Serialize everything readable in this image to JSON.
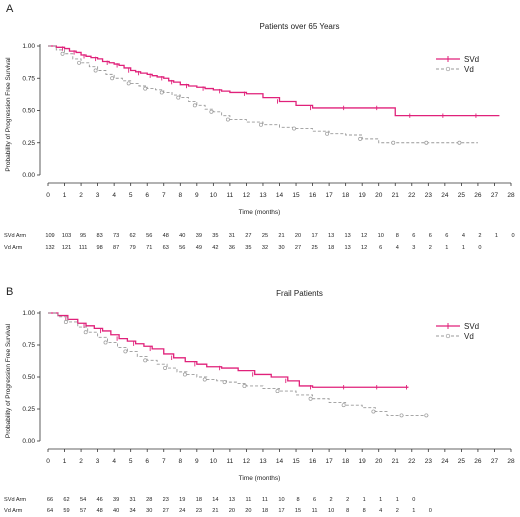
{
  "chart_data": [
    {
      "type": "line",
      "panel_label": "A",
      "title": "Patients over 65 Years",
      "xlabel": "Time (months)",
      "ylabel": "Probability of Progression Free Survival",
      "xlim": [
        0,
        28
      ],
      "ylim": [
        0,
        1.0
      ],
      "xticks": [
        0,
        1,
        2,
        3,
        4,
        5,
        6,
        7,
        8,
        9,
        10,
        11,
        12,
        13,
        14,
        15,
        16,
        17,
        18,
        19,
        20,
        21,
        22,
        23,
        24,
        25,
        26,
        27,
        28
      ],
      "yticks": [
        "0.00",
        "0.25",
        "0.50",
        "0.75",
        "1.00"
      ],
      "legend_position": "top-right",
      "grid": false,
      "series": [
        {
          "name": "SVd",
          "color": "#e0217a",
          "style": "solid",
          "x": [
            0,
            0.5,
            1,
            1.3,
            1.7,
            2,
            2.3,
            2.6,
            3,
            3.3,
            3.7,
            4,
            4.3,
            4.6,
            5,
            5.3,
            5.6,
            6,
            6.3,
            6.6,
            7,
            7.3,
            7.6,
            8,
            8.5,
            9,
            9.5,
            10,
            10.5,
            11,
            12,
            13,
            14,
            15,
            16,
            17,
            18,
            19,
            20,
            21,
            22,
            23,
            24,
            25,
            26,
            27.3
          ],
          "y": [
            1.0,
            0.99,
            0.98,
            0.96,
            0.95,
            0.93,
            0.92,
            0.91,
            0.9,
            0.88,
            0.87,
            0.86,
            0.85,
            0.83,
            0.81,
            0.8,
            0.79,
            0.78,
            0.77,
            0.76,
            0.75,
            0.73,
            0.72,
            0.7,
            0.69,
            0.68,
            0.67,
            0.66,
            0.65,
            0.64,
            0.63,
            0.6,
            0.57,
            0.54,
            0.52,
            0.52,
            0.52,
            0.52,
            0.52,
            0.46,
            0.46,
            0.46,
            0.46,
            0.46,
            0.46,
            0.46
          ]
        },
        {
          "name": "Vd",
          "color": "#999999",
          "style": "dashed",
          "x": [
            0,
            0.5,
            1,
            1.5,
            2,
            2.5,
            3,
            3.5,
            4,
            4.5,
            5,
            5.5,
            6,
            6.5,
            7,
            7.5,
            8,
            8.5,
            9,
            9.5,
            10,
            10.5,
            11,
            12,
            13,
            14,
            15,
            16,
            17,
            18,
            19,
            20,
            21,
            22,
            23,
            24,
            25,
            26
          ],
          "y": [
            1.0,
            0.97,
            0.94,
            0.9,
            0.87,
            0.84,
            0.81,
            0.78,
            0.75,
            0.73,
            0.71,
            0.69,
            0.67,
            0.66,
            0.64,
            0.62,
            0.6,
            0.57,
            0.54,
            0.51,
            0.49,
            0.46,
            0.43,
            0.41,
            0.39,
            0.37,
            0.36,
            0.34,
            0.32,
            0.31,
            0.28,
            0.25,
            0.25,
            0.25,
            0.25,
            0.25,
            0.25,
            0.25
          ]
        }
      ],
      "risk_table": {
        "xlabel": "Time (months)",
        "rows": [
          {
            "label": "SVd Arm",
            "values": [
              "109",
              "103",
              "95",
              "83",
              "73",
              "62",
              "56",
              "48",
              "40",
              "39",
              "35",
              "31",
              "27",
              "25",
              "21",
              "20",
              "17",
              "13",
              "13",
              "12",
              "10",
              "8",
              "6",
              "6",
              "6",
              "4",
              "2",
              "1",
              "0"
            ]
          },
          {
            "label": "Vd Arm",
            "values": [
              "132",
              "121",
              "111",
              "98",
              "87",
              "79",
              "71",
              "63",
              "56",
              "49",
              "42",
              "36",
              "35",
              "32",
              "30",
              "27",
              "25",
              "18",
              "13",
              "12",
              "6",
              "4",
              "3",
              "2",
              "1",
              "1",
              "0",
              "",
              ""
            ]
          }
        ]
      }
    },
    {
      "type": "line",
      "panel_label": "B",
      "title": "Frail Patients",
      "xlabel": "Time (months)",
      "ylabel": "Probability of Progression Free Survival",
      "xlim": [
        0,
        28
      ],
      "ylim": [
        0,
        1.0
      ],
      "xticks": [
        0,
        1,
        2,
        3,
        4,
        5,
        6,
        7,
        8,
        9,
        10,
        11,
        12,
        13,
        14,
        15,
        16,
        17,
        18,
        19,
        20,
        21,
        22,
        23,
        24,
        25,
        26,
        27,
        28
      ],
      "yticks": [
        "0.00",
        "0.25",
        "0.50",
        "0.75",
        "1.00"
      ],
      "legend_position": "top-right",
      "grid": false,
      "series": [
        {
          "name": "SVd",
          "color": "#e0217a",
          "style": "solid",
          "x": [
            0,
            0.6,
            1.2,
            1.8,
            2.3,
            2.8,
            3.3,
            3.8,
            4.3,
            4.8,
            5.3,
            5.8,
            6.3,
            7,
            7.6,
            8.3,
            9,
            9.6,
            10.5,
            11.5,
            12.5,
            13.5,
            14.5,
            15.2,
            16,
            17,
            18,
            19,
            20,
            21,
            21.8
          ],
          "y": [
            1.0,
            0.98,
            0.95,
            0.92,
            0.9,
            0.88,
            0.86,
            0.83,
            0.8,
            0.78,
            0.76,
            0.74,
            0.72,
            0.68,
            0.65,
            0.62,
            0.6,
            0.58,
            0.57,
            0.55,
            0.52,
            0.5,
            0.47,
            0.43,
            0.42,
            0.42,
            0.42,
            0.42,
            0.42,
            0.42,
            0.42
          ]
        },
        {
          "name": "Vd",
          "color": "#999999",
          "style": "dashed",
          "x": [
            0,
            0.6,
            1.2,
            1.8,
            2.4,
            3,
            3.6,
            4.2,
            4.8,
            5.4,
            6,
            6.6,
            7.2,
            7.8,
            8.4,
            9,
            9.6,
            10.2,
            10.8,
            11.4,
            12,
            13,
            14,
            15,
            16,
            17,
            18,
            19,
            19.8,
            20.5,
            21.5,
            22.5,
            23
          ],
          "y": [
            1.0,
            0.97,
            0.93,
            0.89,
            0.85,
            0.81,
            0.77,
            0.73,
            0.7,
            0.66,
            0.63,
            0.6,
            0.57,
            0.54,
            0.52,
            0.5,
            0.48,
            0.47,
            0.46,
            0.45,
            0.43,
            0.41,
            0.39,
            0.36,
            0.33,
            0.3,
            0.28,
            0.26,
            0.23,
            0.2,
            0.2,
            0.2,
            0.2
          ]
        }
      ],
      "risk_table": {
        "xlabel": "Time (months)",
        "rows": [
          {
            "label": "SVd Arm",
            "values": [
              "66",
              "62",
              "54",
              "46",
              "39",
              "31",
              "28",
              "23",
              "19",
              "18",
              "14",
              "13",
              "11",
              "11",
              "10",
              "8",
              "6",
              "2",
              "2",
              "1",
              "1",
              "1",
              "0",
              "",
              "",
              "",
              "",
              "",
              ""
            ]
          },
          {
            "label": "Vd Arm",
            "values": [
              "64",
              "59",
              "57",
              "48",
              "40",
              "34",
              "30",
              "27",
              "24",
              "23",
              "21",
              "20",
              "20",
              "18",
              "17",
              "15",
              "11",
              "10",
              "8",
              "8",
              "4",
              "2",
              "1",
              "0",
              "",
              "",
              "",
              "",
              ""
            ]
          }
        ]
      }
    }
  ]
}
